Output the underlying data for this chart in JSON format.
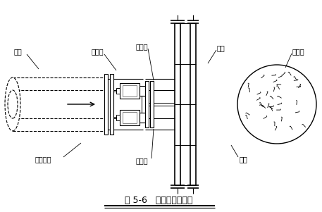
{
  "title": "图 5-6   钢管横撑安装图",
  "bg_color": "#ffffff",
  "line_color": "#000000",
  "labels": {
    "steel_tube": "钢管",
    "live_joint": "活络头",
    "live_joint_end": "活络端头",
    "jack_top": "千斤顶",
    "jack_bottom": "千斤顶",
    "steel_beam": "钢梁",
    "wailing": "围檩",
    "bored_pile": "灌注桩"
  },
  "fig_width": 4.57,
  "fig_height": 3.01,
  "dpi": 100
}
